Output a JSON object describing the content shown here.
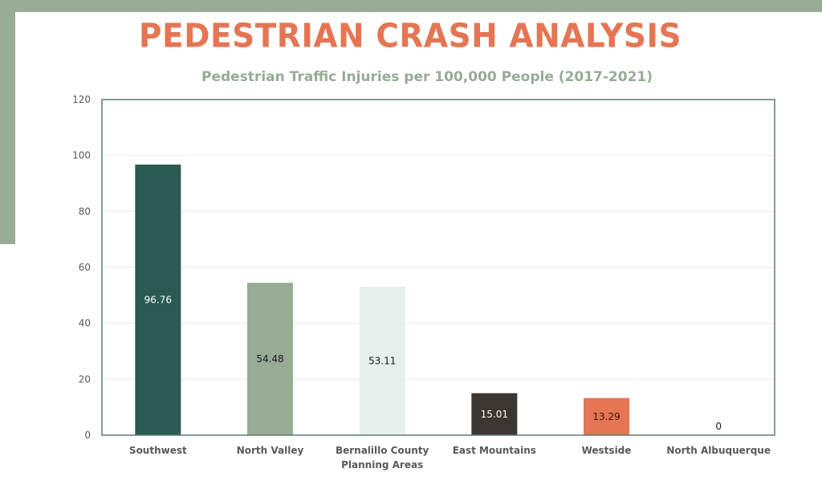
{
  "header": {
    "title": "PEDESTRIAN CRASH ANALYSIS"
  },
  "colors": {
    "frame_accent": "#97ab95",
    "title": "#e57553",
    "subtitle": "#97ab95",
    "plot_border": "#5f7a7a",
    "gridline": "#eeeeee",
    "axis_text": "#595959"
  },
  "chart_data": {
    "type": "bar",
    "title": "Pedestrian Traffic Injuries per 100,000 People (2017-2021)",
    "xlabel": "",
    "ylabel": "",
    "ylim": [
      0,
      120
    ],
    "yticks": [
      0,
      20,
      40,
      60,
      80,
      100,
      120
    ],
    "grid": true,
    "legend": "none",
    "categories": [
      [
        "Southwest"
      ],
      [
        "North Valley"
      ],
      [
        "Bernalillo County",
        "Planning Areas"
      ],
      [
        "East Mountains"
      ],
      [
        "Westside"
      ],
      [
        "North Albuquerque"
      ]
    ],
    "values": [
      96.76,
      54.48,
      53.11,
      15.01,
      13.29,
      0
    ],
    "data_labels": [
      "96.76",
      "54.48",
      "53.11",
      "15.01",
      "13.29",
      "0"
    ],
    "bar_colors": [
      "#2a5a52",
      "#97ab95",
      "#e6efec",
      "#3b3632",
      "#e57553",
      "#ffffff"
    ],
    "label_colors": [
      "#ffffff",
      "#1a1a1a",
      "#1a1a1a",
      "#ffffff",
      "#3a1a10",
      "#1a1a1a"
    ]
  }
}
